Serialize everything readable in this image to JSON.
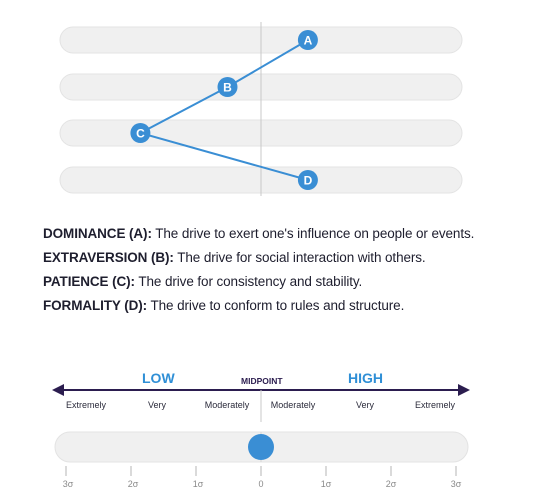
{
  "diagram": {
    "points": [
      {
        "letter": "A",
        "trait": "DOMINANCE",
        "sigma": 0.7
      },
      {
        "letter": "B",
        "trait": "EXTRAVERSION",
        "sigma": -0.5
      },
      {
        "letter": "C",
        "trait": "PATIENCE",
        "sigma": -1.8
      },
      {
        "letter": "D",
        "trait": "FORMALITY",
        "sigma": 0.7
      }
    ]
  },
  "definitions": [
    {
      "term": "DOMINANCE (A):",
      "text": " The drive to exert one's influence on people or events."
    },
    {
      "term": "EXTRAVERSION (B):",
      "text": " The drive for social interaction with others."
    },
    {
      "term": "PATIENCE (C):",
      "text": " The drive for consistency and stability."
    },
    {
      "term": "FORMALITY (D):",
      "text": " The drive to conform to rules and structure."
    }
  ],
  "scale": {
    "low": "LOW",
    "midpoint": "MIDPOINT",
    "high": "HIGH",
    "degrees": [
      "Extremely",
      "Very",
      "Moderately",
      "Moderately",
      "Very",
      "Extremely"
    ],
    "sigma_labels": [
      "3σ",
      "2σ",
      "1σ",
      "0",
      "1σ",
      "2σ",
      "3σ"
    ],
    "marker_sigma": 0
  },
  "colors": {
    "accent": "#3a8ed4",
    "accent_text": "#2f8fd6",
    "track": "#f0f0f0",
    "track_border": "#e3e3e3",
    "axis": "#2b1d4f"
  }
}
